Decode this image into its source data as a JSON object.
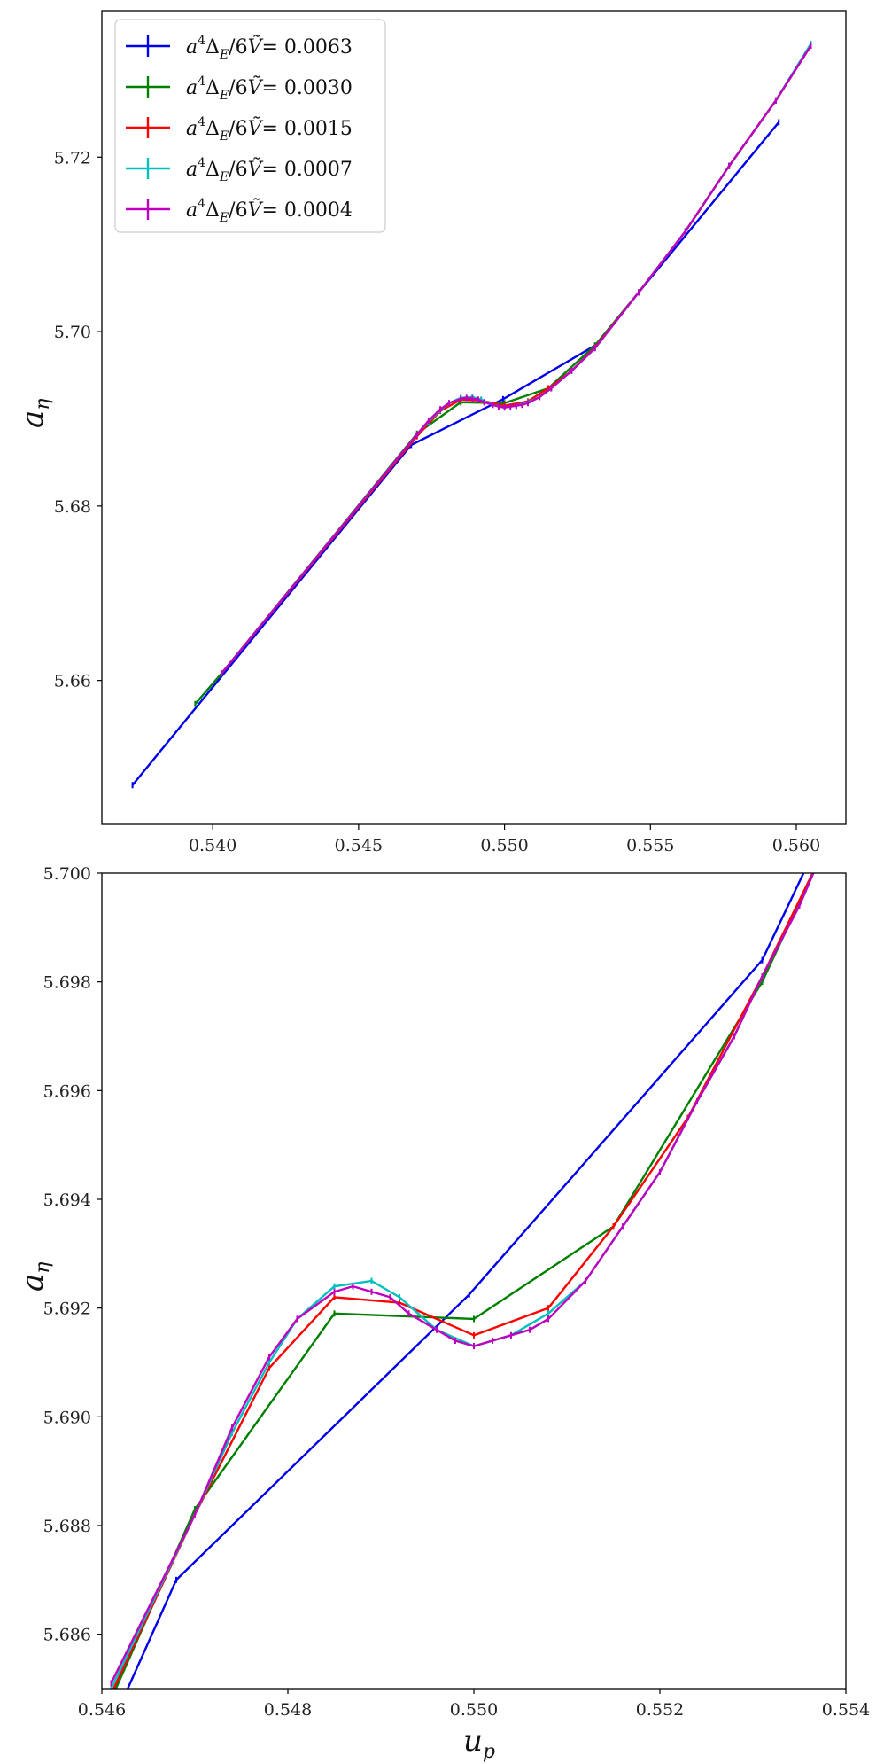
{
  "chart_data": [
    {
      "type": "line",
      "panel": "top",
      "xlabel": "",
      "ylabel": "a_η",
      "xlim": [
        0.5362,
        0.5617
      ],
      "ylim": [
        5.6435,
        5.7368
      ],
      "xticks": [
        0.54,
        0.545,
        0.55,
        0.555,
        0.56
      ],
      "xtick_labels": [
        "0.540",
        "0.545",
        "0.550",
        "0.555",
        "0.560"
      ],
      "yticks": [
        5.66,
        5.68,
        5.7,
        5.72
      ],
      "ytick_labels": [
        "5.66",
        "5.68",
        "5.70",
        "5.72"
      ],
      "legend": {
        "placement": "top-left"
      },
      "grid": false,
      "series": [
        {
          "name": "a⁴Δ_E/6Ṽ= 0.0063",
          "label_prefix": "a",
          "label_exp": "4",
          "label_mid": "Δ",
          "label_sub": "E",
          "label_rest": "/6",
          "label_var": "Ṽ",
          "label_value": "= 0.0063",
          "color": "#0000ee",
          "x": [
            0.53725,
            0.5468,
            0.54995,
            0.5531,
            0.5594
          ],
          "y": [
            5.648,
            5.687,
            5.69225,
            5.6984,
            5.724
          ]
        },
        {
          "name": "a⁴Δ_E/6Ṽ= 0.0030",
          "label_prefix": "a",
          "label_exp": "4",
          "label_mid": "Δ",
          "label_sub": "E",
          "label_rest": "/6",
          "label_var": "Ṽ",
          "label_value": "= 0.0030",
          "color": "#008000",
          "x": [
            0.5394,
            0.5403,
            0.547,
            0.5485,
            0.55,
            0.5515,
            0.5531,
            0.5546,
            0.5562,
            0.5577,
            0.5593,
            0.5605
          ],
          "y": [
            5.6573,
            5.6608,
            5.6883,
            5.6919,
            5.6918,
            5.6935,
            5.6984,
            5.7045,
            5.7115,
            5.719,
            5.7265,
            5.7328
          ]
        },
        {
          "name": "a⁴Δ_E/6Ṽ= 0.0015",
          "label_prefix": "a",
          "label_exp": "4",
          "label_mid": "Δ",
          "label_sub": "E",
          "label_rest": "/6",
          "label_var": "Ṽ",
          "label_value": "= 0.0015",
          "color": "#ff0000",
          "x": [
            0.5403,
            0.547,
            0.5478,
            0.5485,
            0.5492,
            0.55,
            0.5508,
            0.5515,
            0.5523,
            0.5531,
            0.5546,
            0.5562,
            0.5577,
            0.5593,
            0.5605
          ],
          "y": [
            5.6608,
            5.688,
            5.6909,
            5.6922,
            5.6921,
            5.6915,
            5.692,
            5.6935,
            5.6955,
            5.6982,
            5.7045,
            5.7115,
            5.719,
            5.7265,
            5.7328
          ]
        },
        {
          "name": "a⁴Δ_E/6Ṽ= 0.0007",
          "label_prefix": "a",
          "label_exp": "4",
          "label_mid": "Δ",
          "label_sub": "E",
          "label_rest": "/6",
          "label_var": "Ṽ",
          "label_value": "= 0.0007",
          "color": "#00bfbf",
          "x": [
            0.5403,
            0.547,
            0.5474,
            0.5478,
            0.5481,
            0.5485,
            0.5489,
            0.5492,
            0.5496,
            0.55,
            0.5504,
            0.5508,
            0.5512,
            0.5516,
            0.5523,
            0.5531,
            0.5546,
            0.5562,
            0.5577,
            0.5593,
            0.5605
          ],
          "y": [
            5.6608,
            5.6882,
            5.6897,
            5.691,
            5.6918,
            5.6924,
            5.6925,
            5.6922,
            5.6916,
            5.6913,
            5.6915,
            5.6919,
            5.6925,
            5.6935,
            5.6955,
            5.6981,
            5.7045,
            5.7115,
            5.719,
            5.7265,
            5.733
          ]
        },
        {
          "name": "a⁴Δ_E/6Ṽ= 0.0004",
          "label_prefix": "a",
          "label_exp": "4",
          "label_mid": "Δ",
          "label_sub": "E",
          "label_rest": "/6",
          "label_var": "Ṽ",
          "label_value": "= 0.0004",
          "color": "#bf00bf",
          "x": [
            0.5403,
            0.547,
            0.5474,
            0.5478,
            0.5481,
            0.5485,
            0.5487,
            0.5489,
            0.5491,
            0.5493,
            0.5496,
            0.5498,
            0.55,
            0.5502,
            0.5504,
            0.5506,
            0.5508,
            0.5512,
            0.5516,
            0.5523,
            0.5531,
            0.5546,
            0.5562,
            0.5577,
            0.5593,
            0.5605
          ],
          "y": [
            5.6608,
            5.6882,
            5.6898,
            5.6911,
            5.6918,
            5.6923,
            5.6924,
            5.6923,
            5.6922,
            5.6919,
            5.6916,
            5.6914,
            5.6913,
            5.6914,
            5.6915,
            5.6916,
            5.6918,
            5.6925,
            5.6935,
            5.6955,
            5.6981,
            5.7045,
            5.7115,
            5.719,
            5.7265,
            5.7328
          ]
        }
      ]
    },
    {
      "type": "line",
      "panel": "bottom",
      "xlabel": "u_p",
      "ylabel": "a_η",
      "xlim": [
        0.546,
        0.554
      ],
      "ylim": [
        5.685,
        5.7
      ],
      "xticks": [
        0.546,
        0.548,
        0.55,
        0.552,
        0.554
      ],
      "xtick_labels": [
        "0.546",
        "0.548",
        "0.550",
        "0.552",
        "0.554"
      ],
      "yticks": [
        5.686,
        5.688,
        5.69,
        5.692,
        5.694,
        5.696,
        5.698,
        5.7
      ],
      "ytick_labels": [
        "5.686",
        "5.688",
        "5.690",
        "5.692",
        "5.694",
        "5.696",
        "5.698",
        "5.700"
      ],
      "grid": false,
      "series": [
        {
          "name": "a⁴Δ_E/6Ṽ= 0.0063",
          "color": "#0000ee",
          "x": [
            0.5462,
            0.5468,
            0.54995,
            0.5531,
            0.5536
          ],
          "y": [
            5.6847,
            5.687,
            5.69225,
            5.6984,
            5.7002
          ]
        },
        {
          "name": "a⁴Δ_E/6Ṽ= 0.0030",
          "color": "#008000",
          "x": [
            0.5461,
            0.547,
            0.5485,
            0.55,
            0.5515,
            0.5531,
            0.5537
          ],
          "y": [
            5.6848,
            5.6883,
            5.6919,
            5.6918,
            5.6935,
            5.698,
            5.7002
          ]
        },
        {
          "name": "a⁴Δ_E/6Ṽ= 0.0015",
          "color": "#ff0000",
          "x": [
            0.5461,
            0.547,
            0.5478,
            0.5485,
            0.5492,
            0.55,
            0.5508,
            0.5515,
            0.5523,
            0.5531,
            0.5537
          ],
          "y": [
            5.6849,
            5.6882,
            5.6909,
            5.6922,
            5.6921,
            5.6915,
            5.692,
            5.6935,
            5.6955,
            5.6981,
            5.7002
          ]
        },
        {
          "name": "a⁴Δ_E/6Ṽ= 0.0007",
          "color": "#00bfbf",
          "x": [
            0.5461,
            0.547,
            0.5474,
            0.5478,
            0.5481,
            0.5485,
            0.5489,
            0.5492,
            0.5496,
            0.55,
            0.5504,
            0.5508,
            0.5512,
            0.5516,
            0.552,
            0.5524,
            0.5528,
            0.5531,
            0.5535,
            0.5537
          ],
          "y": [
            5.685,
            5.6882,
            5.6897,
            5.691,
            5.6918,
            5.6924,
            5.6925,
            5.6922,
            5.6916,
            5.6913,
            5.6915,
            5.6919,
            5.6925,
            5.6935,
            5.6945,
            5.6958,
            5.697,
            5.6981,
            5.6994,
            5.7002
          ]
        },
        {
          "name": "a⁴Δ_E/6Ṽ= 0.0004",
          "color": "#bf00bf",
          "x": [
            0.5461,
            0.547,
            0.5474,
            0.5478,
            0.5481,
            0.5485,
            0.5487,
            0.5489,
            0.5491,
            0.5493,
            0.5496,
            0.5498,
            0.55,
            0.5502,
            0.5504,
            0.5506,
            0.5508,
            0.5512,
            0.5516,
            0.552,
            0.5524,
            0.5528,
            0.5531,
            0.5535,
            0.5537
          ],
          "y": [
            5.6851,
            5.6882,
            5.6898,
            5.6911,
            5.6918,
            5.6923,
            5.6924,
            5.6923,
            5.6922,
            5.6919,
            5.6916,
            5.6914,
            5.6913,
            5.6914,
            5.6915,
            5.6916,
            5.6918,
            5.6925,
            5.6935,
            5.6945,
            5.6958,
            5.697,
            5.6981,
            5.6994,
            5.7002
          ]
        }
      ]
    }
  ]
}
